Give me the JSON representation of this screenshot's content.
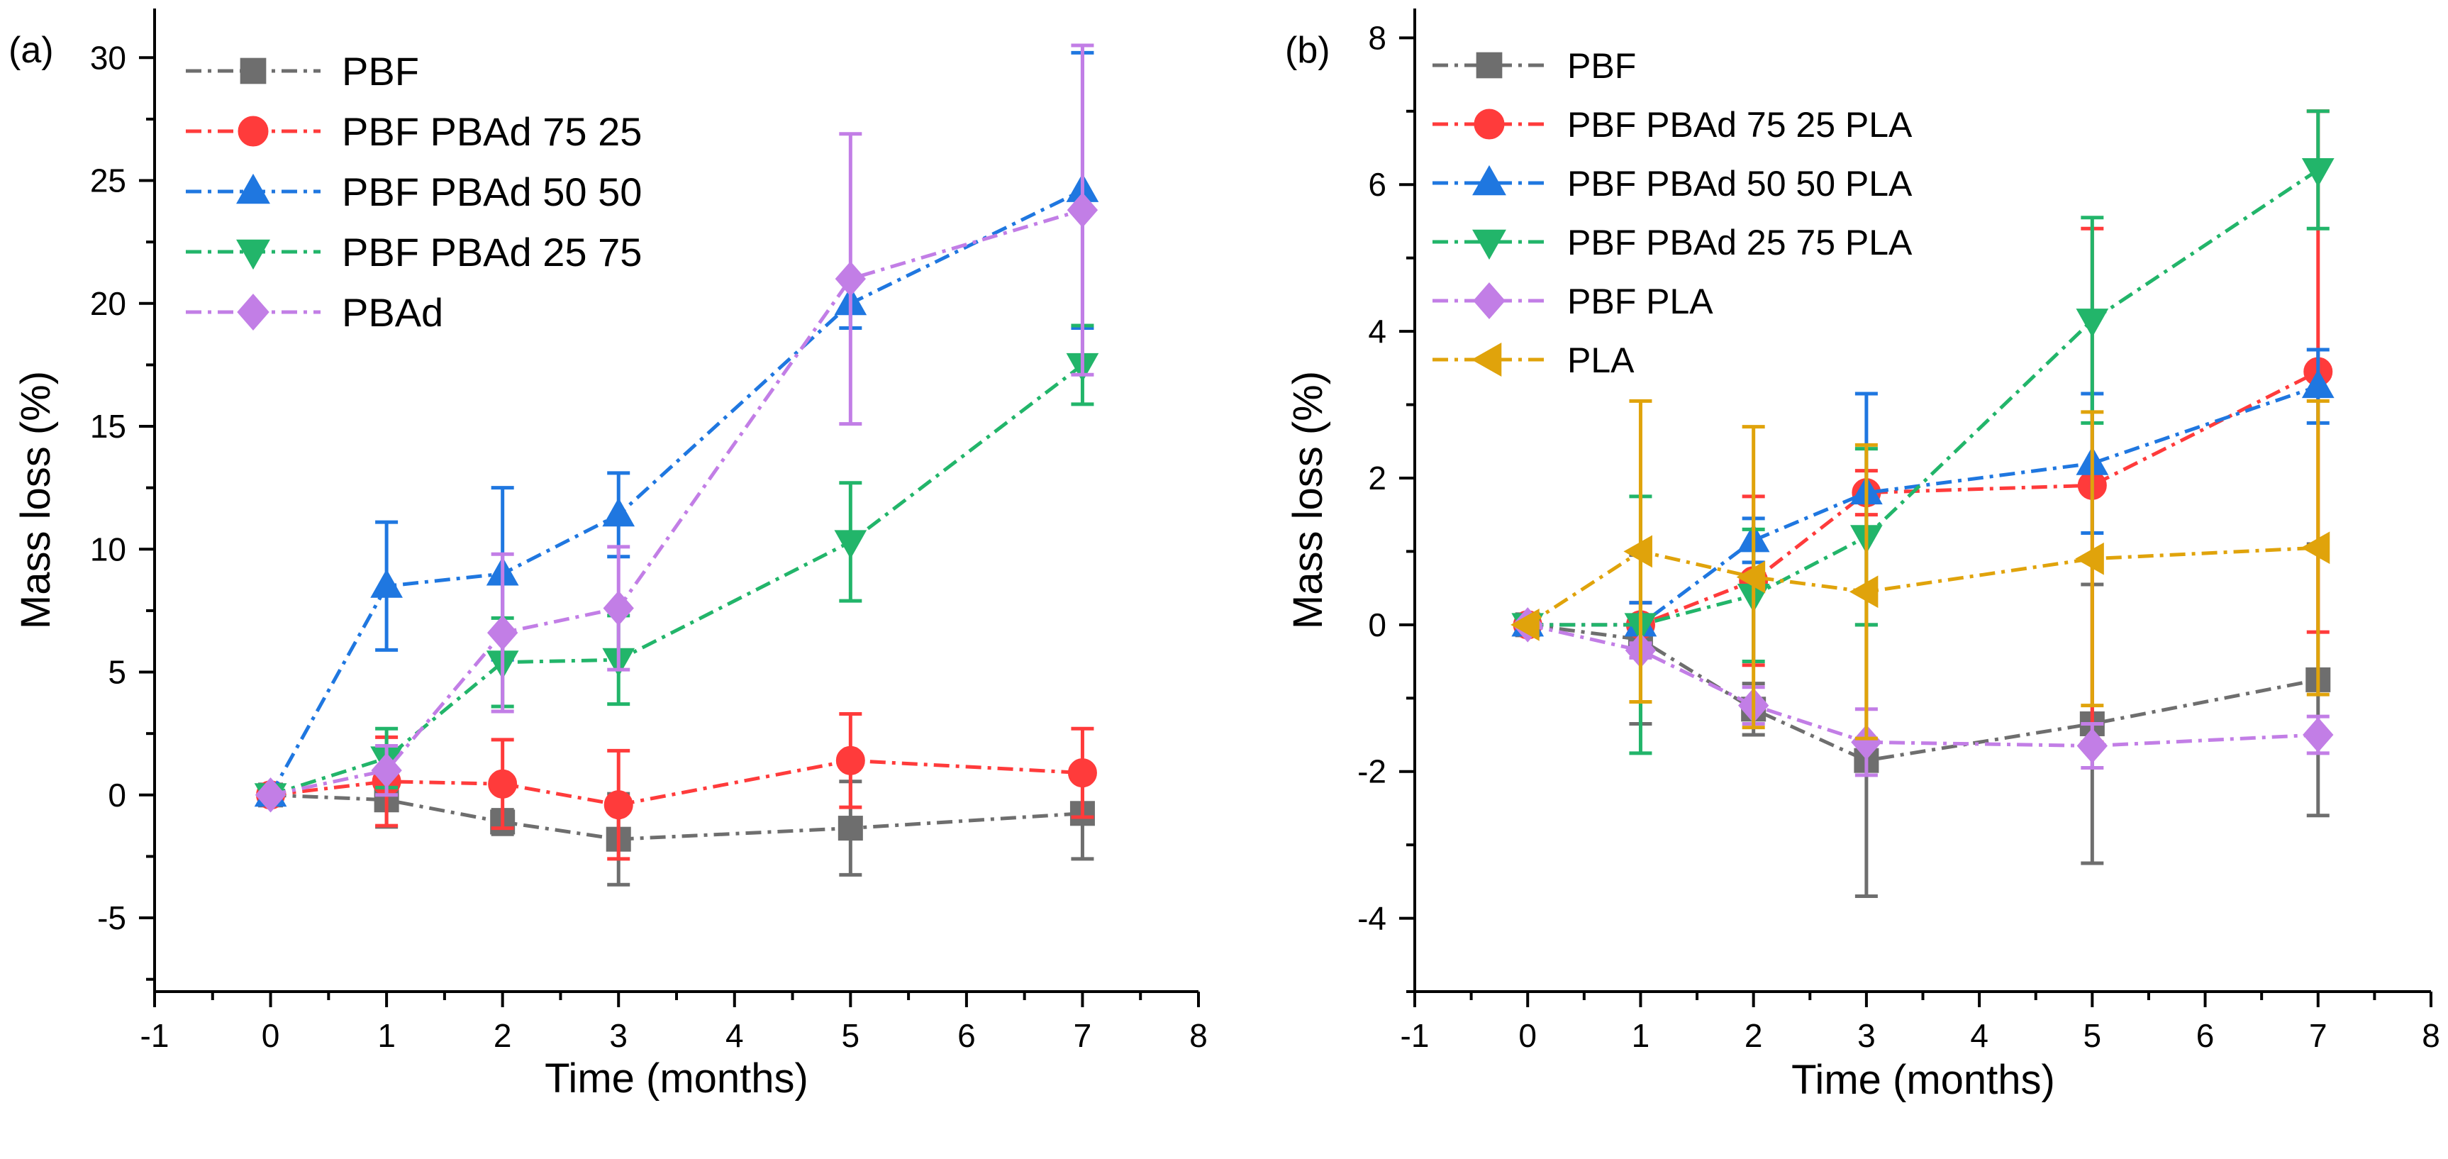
{
  "chart_data": [
    {
      "type": "line",
      "panel_label": "(a)",
      "xlabel": "Time (months)",
      "ylabel": "Mass loss (%)",
      "xlim": [
        -1,
        8
      ],
      "ylim": [
        -8,
        32
      ],
      "xticks": [
        "-1",
        "0",
        "1",
        "2",
        "3",
        "4",
        "5",
        "6",
        "7",
        "8"
      ],
      "yticks": [
        "-5",
        "0",
        "5",
        "10",
        "15",
        "20",
        "25",
        "30"
      ],
      "grid": false,
      "legend_position": "top-left",
      "series": [
        {
          "name": "PBF",
          "color": "#6e6e6e",
          "marker": "square",
          "x": [
            0,
            1,
            2,
            3,
            5,
            7
          ],
          "y": [
            0,
            -0.2,
            -1.1,
            -1.8,
            -1.35,
            -0.75
          ],
          "err": [
            0,
            1.1,
            0.5,
            1.85,
            1.9,
            1.85
          ]
        },
        {
          "name": "PBF PBAd 75 25",
          "color": "#ff3b3b",
          "marker": "circle",
          "x": [
            0,
            1,
            2,
            3,
            5,
            7
          ],
          "y": [
            0,
            0.55,
            0.45,
            -0.4,
            1.4,
            0.9
          ],
          "err": [
            0,
            1.8,
            1.8,
            2.2,
            1.9,
            1.8
          ]
        },
        {
          "name": "PBF PBAd 50 50",
          "color": "#1f77e0",
          "marker": "triangle-up",
          "x": [
            0,
            1,
            2,
            3,
            5,
            7
          ],
          "y": [
            0,
            8.5,
            9.0,
            11.4,
            20.0,
            24.6
          ],
          "err": [
            0,
            2.6,
            3.5,
            1.7,
            1.0,
            5.6
          ]
        },
        {
          "name": "PBF PBAd 25 75",
          "color": "#22b56a",
          "marker": "triangle-down",
          "x": [
            0,
            1,
            2,
            3,
            5,
            7
          ],
          "y": [
            0,
            1.5,
            5.4,
            5.5,
            10.3,
            17.5
          ],
          "err": [
            0,
            1.2,
            1.8,
            1.8,
            2.4,
            1.6
          ]
        },
        {
          "name": "PBAd",
          "color": "#c27ee6",
          "marker": "diamond",
          "x": [
            0,
            1,
            2,
            3,
            5,
            7
          ],
          "y": [
            0,
            1.0,
            6.6,
            7.6,
            21.0,
            23.8
          ],
          "err": [
            0,
            1.0,
            3.2,
            2.5,
            5.9,
            6.7
          ]
        }
      ]
    },
    {
      "type": "line",
      "panel_label": "(b)",
      "xlabel": "Time (months)",
      "ylabel": "Mass loss (%)",
      "xlim": [
        -1,
        8
      ],
      "ylim": [
        -5,
        8.4
      ],
      "xticks": [
        "-1",
        "0",
        "1",
        "2",
        "3",
        "4",
        "5",
        "6",
        "7",
        "8"
      ],
      "yticks": [
        "-4",
        "-2",
        "0",
        "2",
        "4",
        "6",
        "8"
      ],
      "grid": false,
      "legend_position": "top-left",
      "series": [
        {
          "name": "PBF",
          "color": "#6e6e6e",
          "marker": "square",
          "x": [
            0,
            1,
            2,
            3,
            5,
            7
          ],
          "y": [
            0,
            -0.2,
            -1.15,
            -1.85,
            -1.35,
            -0.75
          ],
          "err": [
            0,
            1.15,
            0.35,
            1.85,
            1.9,
            1.85
          ]
        },
        {
          "name": "PBF PBAd 75 25 PLA",
          "color": "#ff3b3b",
          "marker": "circle",
          "x": [
            0,
            1,
            2,
            3,
            5,
            7
          ],
          "y": [
            0,
            0,
            0.6,
            1.8,
            1.9,
            3.45
          ],
          "err": [
            0,
            0.3,
            1.15,
            0.3,
            3.5,
            3.55
          ]
        },
        {
          "name": "PBF PBAd 50 50 PLA",
          "color": "#1f77e0",
          "marker": "triangle-up",
          "x": [
            0,
            1,
            2,
            3,
            5,
            7
          ],
          "y": [
            0,
            0,
            1.15,
            1.8,
            2.2,
            3.25
          ],
          "err": [
            0,
            0.3,
            0.3,
            1.35,
            0.95,
            0.5
          ]
        },
        {
          "name": "PBF PBAd 25 75 PLA",
          "color": "#22b56a",
          "marker": "triangle-down",
          "x": [
            0,
            1,
            2,
            3,
            5,
            7
          ],
          "y": [
            0,
            0,
            0.4,
            1.2,
            4.15,
            6.2
          ],
          "err": [
            0,
            1.75,
            0.9,
            1.2,
            1.4,
            0.8
          ]
        },
        {
          "name": "PBF PLA",
          "color": "#c27ee6",
          "marker": "diamond",
          "x": [
            0,
            1,
            2,
            3,
            5,
            7
          ],
          "y": [
            0,
            -0.35,
            -1.1,
            -1.6,
            -1.65,
            -1.5
          ],
          "err": [
            0,
            0.1,
            0.25,
            0.45,
            0.3,
            0.25
          ]
        },
        {
          "name": "PLA",
          "color": "#e0a30b",
          "marker": "triangle-left",
          "x": [
            0,
            1,
            2,
            3,
            5,
            7
          ],
          "y": [
            0,
            1.0,
            0.65,
            0.45,
            0.9,
            1.05
          ],
          "err": [
            0,
            2.05,
            2.05,
            2.0,
            2.0,
            2.0
          ]
        }
      ]
    }
  ]
}
